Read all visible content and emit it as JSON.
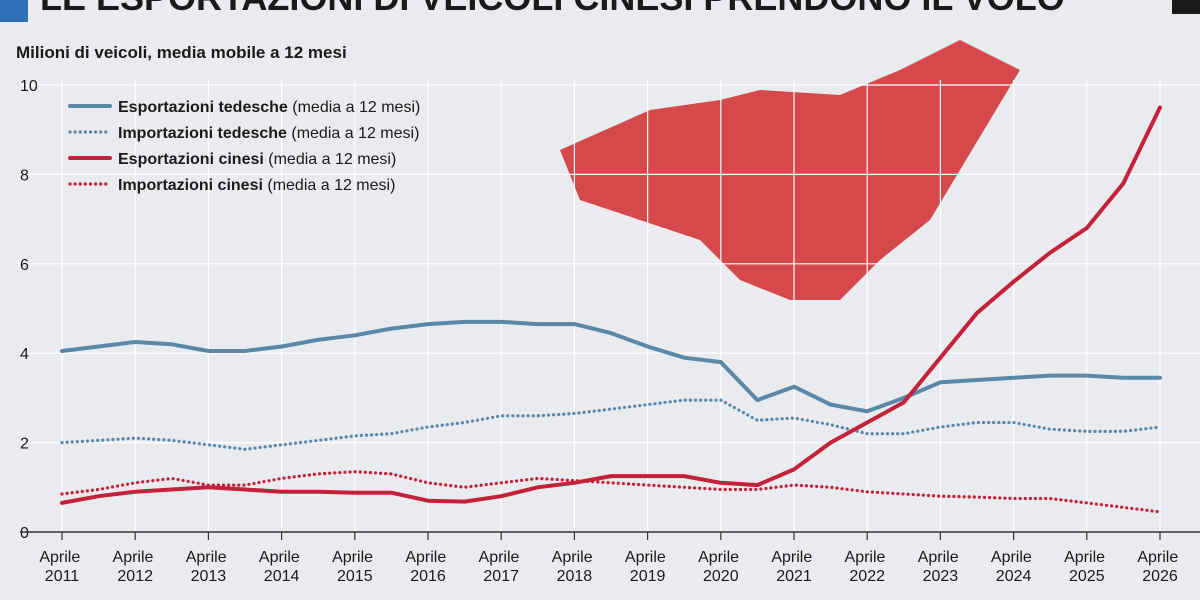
{
  "chart_data": {
    "type": "line",
    "title": "LE ESPORTAZIONI DI VEICOLI CINESI PRENDONO IL VOLO",
    "subtitle": "Milioni di veicoli, media mobile a 12 mesi",
    "x": [
      "2011-04",
      "2011-10",
      "2012-04",
      "2012-10",
      "2013-04",
      "2013-10",
      "2014-04",
      "2014-10",
      "2015-04",
      "2015-10",
      "2016-04",
      "2016-10",
      "2017-04",
      "2017-10",
      "2018-04",
      "2018-10",
      "2019-04",
      "2019-10",
      "2020-04",
      "2020-10",
      "2021-04",
      "2021-10",
      "2022-04",
      "2022-10",
      "2023-04",
      "2023-10",
      "2024-04",
      "2024-10",
      "2025-04",
      "2025-10",
      "2026-04"
    ],
    "xlim": [
      "2011-04",
      "2026-04"
    ],
    "xticks": [
      {
        "value": "2011-04",
        "label": "Aprile 2011"
      },
      {
        "value": "2012-04",
        "label": "Aprile 2012"
      },
      {
        "value": "2013-04",
        "label": "Aprile 2013"
      },
      {
        "value": "2014-04",
        "label": "Aprile 2014"
      },
      {
        "value": "2015-04",
        "label": "Aprile 2015"
      },
      {
        "value": "2016-04",
        "label": "Aprile 2016"
      },
      {
        "value": "2017-04",
        "label": "Aprile 2017"
      },
      {
        "value": "2018-04",
        "label": "Aprile 2018"
      },
      {
        "value": "2019-04",
        "label": "Aprile 2019"
      },
      {
        "value": "2020-04",
        "label": "Aprile 2020"
      },
      {
        "value": "2021-04",
        "label": "Aprile 2021"
      },
      {
        "value": "2022-04",
        "label": "Aprile 2022"
      },
      {
        "value": "2023-04",
        "label": "Aprile 2023"
      },
      {
        "value": "2024-04",
        "label": "Aprile 2024"
      },
      {
        "value": "2025-04",
        "label": "Aprile 2025"
      },
      {
        "value": "2026-04",
        "label": "Aprile 2026"
      }
    ],
    "ylim": [
      0,
      10
    ],
    "yticks": [
      0,
      2,
      4,
      6,
      8,
      10
    ],
    "grid": true,
    "legend": "top-left",
    "series": [
      {
        "name": "Esportazioni tedesche (media a 12 mesi)",
        "color": "#5b87a8",
        "style": "solid",
        "values": [
          4.05,
          4.15,
          4.25,
          4.2,
          4.05,
          4.05,
          4.15,
          4.3,
          4.4,
          4.55,
          4.65,
          4.7,
          4.7,
          4.65,
          4.65,
          4.45,
          4.15,
          3.9,
          3.8,
          2.95,
          3.25,
          2.85,
          2.7,
          3.0,
          3.35,
          3.4,
          3.45,
          3.5,
          3.5,
          3.45,
          3.45
        ]
      },
      {
        "name": "Importazioni tedesche (media a 12 mesi)",
        "color": "#5b87a8",
        "style": "dotted",
        "values": [
          2.0,
          2.05,
          2.1,
          2.05,
          1.95,
          1.85,
          1.95,
          2.05,
          2.15,
          2.2,
          2.35,
          2.45,
          2.6,
          2.6,
          2.65,
          2.75,
          2.85,
          2.95,
          2.95,
          2.5,
          2.55,
          2.4,
          2.2,
          2.2,
          2.35,
          2.45,
          2.45,
          2.3,
          2.25,
          2.25,
          2.35
        ]
      },
      {
        "name": "Esportazioni cinesi (media a 12 mesi)",
        "color": "#c4213a",
        "style": "solid",
        "values": [
          0.65,
          0.8,
          0.9,
          0.95,
          1.0,
          0.95,
          0.9,
          0.9,
          0.88,
          0.88,
          0.7,
          0.68,
          0.8,
          1.0,
          1.1,
          1.25,
          1.25,
          1.25,
          1.1,
          1.05,
          1.4,
          2.0,
          2.45,
          2.9,
          3.9,
          4.9,
          5.6,
          6.25,
          6.8,
          7.8,
          9.5
        ]
      },
      {
        "name": "Importazioni cinesi (media a 12 mesi)",
        "color": "#c4213a",
        "style": "dotted",
        "values": [
          0.85,
          0.95,
          1.1,
          1.2,
          1.05,
          1.05,
          1.2,
          1.3,
          1.35,
          1.3,
          1.1,
          1.0,
          1.1,
          1.2,
          1.15,
          1.1,
          1.05,
          1.0,
          0.95,
          0.95,
          1.05,
          1.0,
          0.9,
          0.85,
          0.8,
          0.78,
          0.75,
          0.75,
          0.65,
          0.55,
          0.45
        ]
      }
    ]
  }
}
